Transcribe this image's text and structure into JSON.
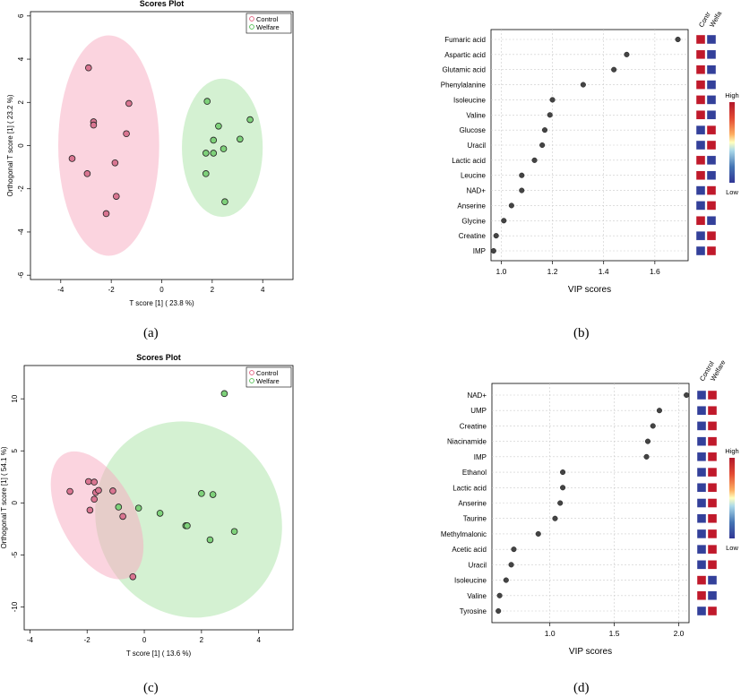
{
  "colors": {
    "control_fill": "#f8a9c0",
    "welfare_fill": "#a9e3a6",
    "control_point": "#d97591",
    "welfare_point": "#7ed17a",
    "control_legend": "#e05a7a",
    "welfare_legend": "#4fbf4f",
    "high_box": "#c0192b",
    "low_box": "#33409a",
    "vip_point": "#444444",
    "grid": "#cccccc"
  },
  "chart_data": [
    {
      "id": "a",
      "type": "scatter",
      "caption": "(a)",
      "title": "Scores Plot",
      "xlabel": "T score [1]  ( 23.8 %)",
      "ylabel": "Orthogonal T score [1]  ( 23.2 %)",
      "xlim": [
        -5.2,
        5.2
      ],
      "ylim": [
        -6.2,
        6.2
      ],
      "xticks": [
        -4,
        -2,
        0,
        2,
        4
      ],
      "yticks": [
        -6,
        -4,
        -2,
        0,
        2,
        4,
        6
      ],
      "legend": [
        "Control",
        "Welfare"
      ],
      "legend_position": "top-right",
      "ellipses": [
        {
          "group": "Control",
          "cx": -2.1,
          "cy": 0.0,
          "rx": 2.0,
          "ry": 5.1,
          "angle": 0
        },
        {
          "group": "Welfare",
          "cx": 2.4,
          "cy": -0.1,
          "rx": 1.6,
          "ry": 3.2,
          "angle": 0
        }
      ],
      "series": [
        {
          "name": "Control",
          "points": [
            [
              -2.9,
              3.6
            ],
            [
              -1.3,
              1.95
            ],
            [
              -2.7,
              1.1
            ],
            [
              -2.7,
              0.95
            ],
            [
              -1.4,
              0.55
            ],
            [
              -3.55,
              -0.6
            ],
            [
              -1.85,
              -0.8
            ],
            [
              -2.95,
              -1.3
            ],
            [
              -1.8,
              -2.35
            ],
            [
              -2.2,
              -3.15
            ]
          ]
        },
        {
          "name": "Welfare",
          "points": [
            [
              1.8,
              2.05
            ],
            [
              3.5,
              1.2
            ],
            [
              2.25,
              0.9
            ],
            [
              3.1,
              0.3
            ],
            [
              2.05,
              0.25
            ],
            [
              2.45,
              -0.15
            ],
            [
              1.75,
              -0.35
            ],
            [
              2.05,
              -0.35
            ],
            [
              1.75,
              -1.3
            ],
            [
              2.5,
              -2.6
            ]
          ]
        }
      ]
    },
    {
      "id": "b",
      "type": "dot",
      "caption": "(b)",
      "xlabel": "VIP scores",
      "xlim": [
        0.96,
        1.73
      ],
      "xticks": [
        "1.0",
        "1.2",
        "1.4",
        "1.6"
      ],
      "xtick_values": [
        1.0,
        1.2,
        1.4,
        1.6
      ],
      "heat_headers": [
        "Control",
        "Welfare"
      ],
      "heat_headers_shown": [
        "Contr",
        "Welfa"
      ],
      "colorbar_high": "High",
      "colorbar_low": "Low",
      "categories": [
        "Fumaric acid",
        "Aspartic acid",
        "Glutamic acid",
        "Phenylalanine",
        "Isoleucine",
        "Valine",
        "Glucose",
        "Uracil",
        "Lactic acid",
        "Leucine",
        "NAD+",
        "Anserine",
        "Glycine",
        "Creatine",
        "IMP"
      ],
      "values": [
        1.69,
        1.49,
        1.44,
        1.32,
        1.2,
        1.19,
        1.17,
        1.16,
        1.13,
        1.08,
        1.08,
        1.04,
        1.01,
        0.98,
        0.97
      ],
      "heat": [
        [
          "high",
          "low"
        ],
        [
          "high",
          "low"
        ],
        [
          "high",
          "low"
        ],
        [
          "high",
          "low"
        ],
        [
          "high",
          "low"
        ],
        [
          "high",
          "low"
        ],
        [
          "low",
          "high"
        ],
        [
          "low",
          "high"
        ],
        [
          "high",
          "low"
        ],
        [
          "high",
          "low"
        ],
        [
          "low",
          "high"
        ],
        [
          "low",
          "high"
        ],
        [
          "high",
          "low"
        ],
        [
          "low",
          "high"
        ],
        [
          "low",
          "high"
        ]
      ]
    },
    {
      "id": "c",
      "type": "scatter",
      "caption": "(c)",
      "title": "Scores Plot",
      "xlabel": "T score [1]  ( 13.6 %)",
      "ylabel": "Orthogonal T score [1]  ( 54.1 %)",
      "xlim": [
        -4.2,
        5.2
      ],
      "ylim": [
        -12.2,
        13.2
      ],
      "xticks": [
        -4,
        -2,
        0,
        2,
        4
      ],
      "yticks": [
        -10,
        -5,
        0,
        5,
        10
      ],
      "legend": [
        "Control",
        "Welfare"
      ],
      "legend_position": "top-right",
      "ellipses": [
        {
          "group": "Welfare",
          "cx": 1.55,
          "cy": -1.6,
          "rx": 3.2,
          "ry": 9.6,
          "angle": -28
        },
        {
          "group": "Control",
          "cx": -1.65,
          "cy": -1.2,
          "rx": 1.3,
          "ry": 6.7,
          "angle": -28
        }
      ],
      "series": [
        {
          "name": "Control",
          "points": [
            [
              -2.6,
              1.1
            ],
            [
              -1.95,
              2.05
            ],
            [
              -1.75,
              2.0
            ],
            [
              -1.7,
              1.0
            ],
            [
              -1.6,
              1.2
            ],
            [
              -1.1,
              1.15
            ],
            [
              -1.75,
              0.35
            ],
            [
              -1.9,
              -0.7
            ],
            [
              -0.75,
              -1.3
            ],
            [
              -0.4,
              -7.1
            ]
          ]
        },
        {
          "name": "Welfare",
          "points": [
            [
              2.8,
              10.5
            ],
            [
              2.0,
              0.9
            ],
            [
              2.4,
              0.8
            ],
            [
              -0.9,
              -0.4
            ],
            [
              -0.2,
              -0.5
            ],
            [
              0.55,
              -1.0
            ],
            [
              1.45,
              -2.2
            ],
            [
              1.5,
              -2.2
            ],
            [
              3.15,
              -2.75
            ],
            [
              2.3,
              -3.55
            ]
          ]
        }
      ]
    },
    {
      "id": "d",
      "type": "dot",
      "caption": "(d)",
      "xlabel": "VIP scores",
      "xlim": [
        0.55,
        2.08
      ],
      "xticks": [
        "1.0",
        "1.5",
        "2.0"
      ],
      "xtick_values": [
        1.0,
        1.5,
        2.0
      ],
      "heat_headers": [
        "Control",
        "Welfare"
      ],
      "heat_headers_shown": [
        "Control",
        "Welfare"
      ],
      "colorbar_high": "High",
      "colorbar_low": "Low",
      "categories": [
        "NAD+",
        "UMP",
        "Creatine",
        "Niacinamide",
        "IMP",
        "Ethanol",
        "Lactic acid",
        "Anserine",
        "Taurine",
        "Methylmalonic",
        "Acetic acid",
        "Uracil",
        "Isoleucine",
        "Valine",
        "Tyrosine"
      ],
      "values": [
        2.06,
        1.85,
        1.8,
        1.76,
        1.75,
        1.1,
        1.1,
        1.08,
        1.04,
        0.91,
        0.72,
        0.7,
        0.66,
        0.61,
        0.6
      ],
      "heat": [
        [
          "low",
          "high"
        ],
        [
          "low",
          "high"
        ],
        [
          "low",
          "high"
        ],
        [
          "low",
          "high"
        ],
        [
          "low",
          "high"
        ],
        [
          "low",
          "high"
        ],
        [
          "low",
          "high"
        ],
        [
          "low",
          "high"
        ],
        [
          "low",
          "high"
        ],
        [
          "low",
          "high"
        ],
        [
          "low",
          "high"
        ],
        [
          "low",
          "high"
        ],
        [
          "high",
          "low"
        ],
        [
          "high",
          "low"
        ],
        [
          "low",
          "high"
        ]
      ]
    }
  ]
}
